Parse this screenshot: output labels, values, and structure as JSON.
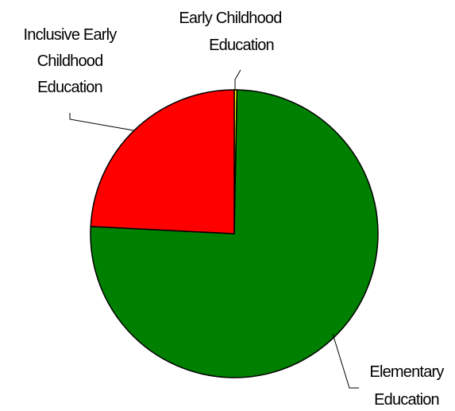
{
  "chart_data": {
    "type": "pie",
    "slices": [
      {
        "label": "Elementary Education",
        "label_lines": [
          "Elementary",
          "Education"
        ],
        "value": 75.5,
        "color": "#008000"
      },
      {
        "label": "Inclusive Early Childhood Education",
        "label_lines": [
          "Inclusive Early",
          "Childhood",
          "Education"
        ],
        "value": 24.2,
        "color": "#ff0000"
      },
      {
        "label": "Early Childhood Education",
        "label_lines": [
          "Early Childhood",
          "Education"
        ],
        "value": 0.3,
        "color": "#ffff00"
      }
    ],
    "start_angle": "12 o'clock",
    "direction": "clockwise",
    "labels": "outside with leader lines",
    "legend": "none"
  }
}
